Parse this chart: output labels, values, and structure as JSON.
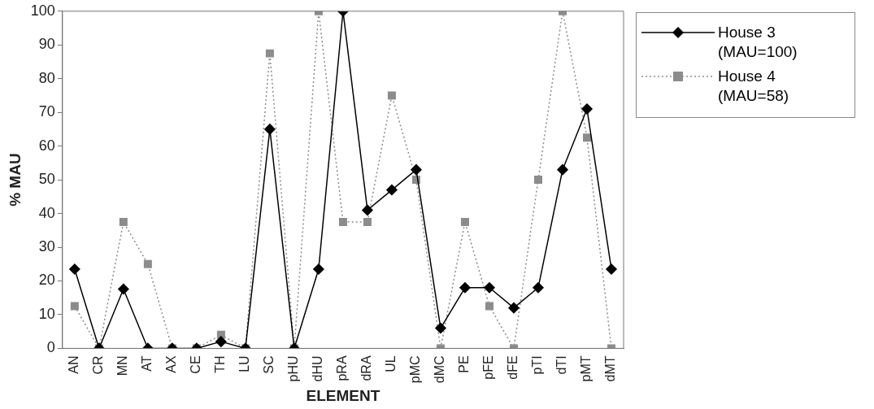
{
  "chart_data": {
    "type": "line",
    "xlabel": "ELEMENT",
    "ylabel": "% MAU",
    "categories": [
      "AN",
      "CR",
      "MN",
      "AT",
      "AX",
      "CE",
      "TH",
      "LU",
      "SC",
      "pHU",
      "dHU",
      "pRA",
      "dRA",
      "UL",
      "pMC",
      "dMC",
      "PE",
      "pFE",
      "dFE",
      "pTI",
      "dTI",
      "pMT",
      "dMT"
    ],
    "series": [
      {
        "name": "House 3 (MAU=100)",
        "color": "#000000",
        "marker": "diamond",
        "line_style": "solid",
        "values": [
          23.5,
          0,
          17.6,
          0,
          0,
          0,
          2,
          0,
          65,
          0,
          23.5,
          100,
          41,
          47,
          53,
          6,
          18,
          18,
          12,
          18,
          53,
          71,
          23.5
        ]
      },
      {
        "name": "House 4 (MAU=58)",
        "color": "#8c8c8c",
        "marker": "square",
        "line_style": "dotted",
        "values": [
          12.5,
          0,
          37.5,
          25,
          0,
          0,
          4,
          0,
          87.5,
          0,
          100,
          37.5,
          37.5,
          75,
          50,
          0,
          37.5,
          12.5,
          0,
          50,
          100,
          62.5,
          0
        ]
      }
    ],
    "ylim": [
      0,
      100
    ],
    "yticks": [
      0,
      10,
      20,
      30,
      40,
      50,
      60,
      70,
      80,
      90,
      100
    ],
    "grid": false,
    "legend": "right"
  }
}
